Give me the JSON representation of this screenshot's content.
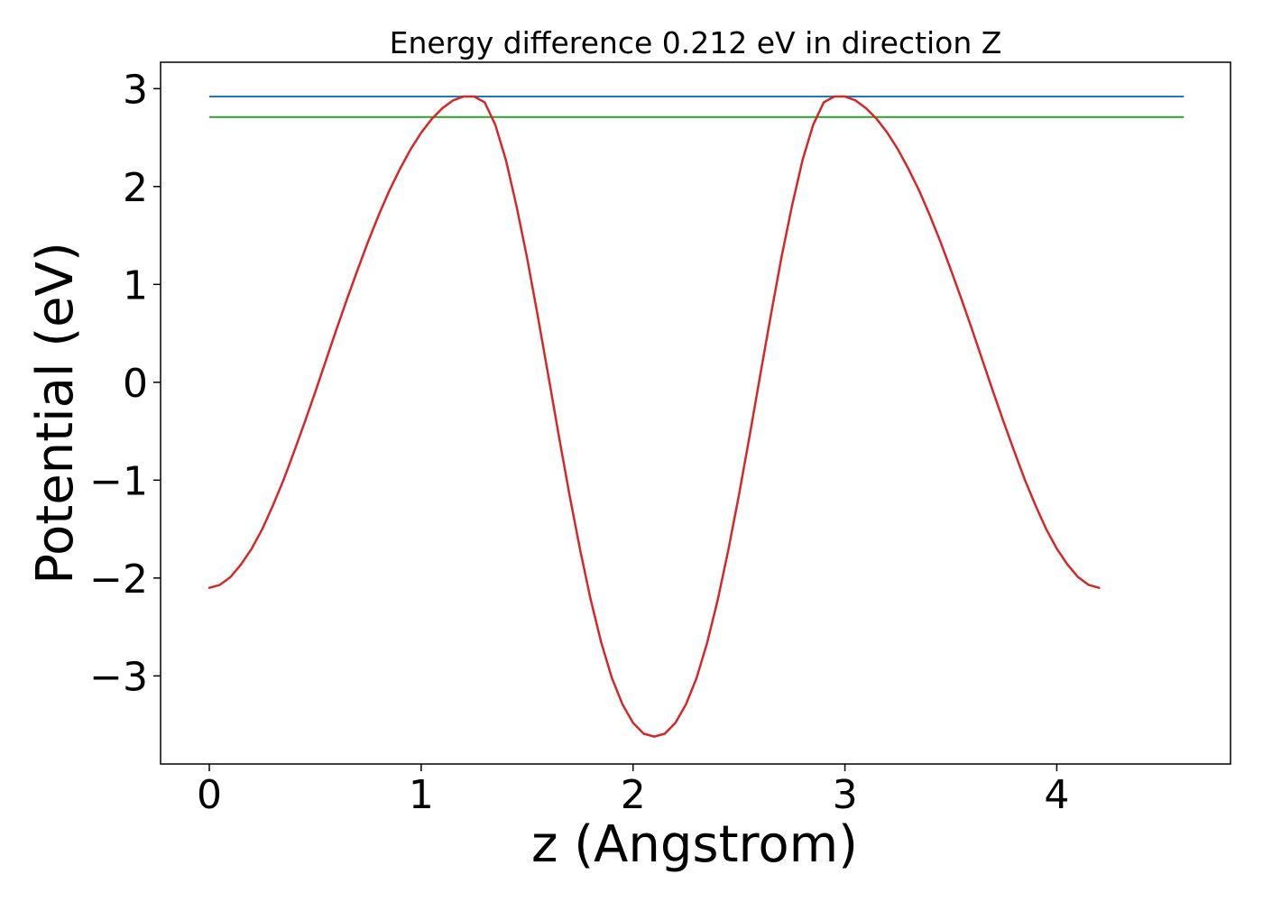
{
  "chart_data": {
    "type": "line",
    "title": "Energy difference 0.212 eV in direction Z",
    "xlabel": "z (Angstrom)",
    "ylabel": "Potential (eV)",
    "xlim": [
      -0.23,
      4.82
    ],
    "ylim": [
      -3.9,
      3.27
    ],
    "xticks": [
      0,
      1,
      2,
      3,
      4
    ],
    "xtick_labels": [
      "0",
      "1",
      "2",
      "3",
      "4"
    ],
    "yticks": [
      -3,
      -2,
      -1,
      0,
      1,
      2,
      3
    ],
    "ytick_labels": [
      "−3",
      "−2",
      "−1",
      "0",
      "1",
      "2",
      "3"
    ],
    "grid": false,
    "legend": "none",
    "series": [
      {
        "color": "#1f77b4",
        "kind": "hline",
        "y": 2.92,
        "x": [
          0,
          4.6
        ]
      },
      {
        "color": "#2ca02c",
        "kind": "hline",
        "y": 2.71,
        "x": [
          0,
          4.6
        ]
      },
      {
        "color": "#d62728",
        "kind": "curve",
        "points": [
          [
            0.0,
            -2.1
          ],
          [
            0.05,
            -2.07
          ],
          [
            0.1,
            -1.99
          ],
          [
            0.15,
            -1.86
          ],
          [
            0.2,
            -1.7
          ],
          [
            0.25,
            -1.5
          ],
          [
            0.3,
            -1.26
          ],
          [
            0.35,
            -1.0
          ],
          [
            0.4,
            -0.71
          ],
          [
            0.45,
            -0.41
          ],
          [
            0.5,
            -0.1
          ],
          [
            0.55,
            0.22
          ],
          [
            0.6,
            0.54
          ],
          [
            0.65,
            0.85
          ],
          [
            0.7,
            1.15
          ],
          [
            0.75,
            1.44
          ],
          [
            0.8,
            1.71
          ],
          [
            0.85,
            1.96
          ],
          [
            0.9,
            2.18
          ],
          [
            0.95,
            2.38
          ],
          [
            1.0,
            2.55
          ],
          [
            1.05,
            2.69
          ],
          [
            1.1,
            2.8
          ],
          [
            1.15,
            2.88
          ],
          [
            1.2,
            2.92
          ],
          [
            1.25,
            2.92
          ],
          [
            1.3,
            2.86
          ],
          [
            1.35,
            2.63
          ],
          [
            1.4,
            2.27
          ],
          [
            1.45,
            1.8
          ],
          [
            1.5,
            1.27
          ],
          [
            1.55,
            0.68
          ],
          [
            1.6,
            0.07
          ],
          [
            1.65,
            -0.55
          ],
          [
            1.7,
            -1.15
          ],
          [
            1.75,
            -1.71
          ],
          [
            1.8,
            -2.22
          ],
          [
            1.85,
            -2.66
          ],
          [
            1.9,
            -3.02
          ],
          [
            1.95,
            -3.29
          ],
          [
            2.0,
            -3.48
          ],
          [
            2.05,
            -3.59
          ],
          [
            2.1,
            -3.62
          ],
          [
            2.15,
            -3.59
          ],
          [
            2.2,
            -3.48
          ],
          [
            2.25,
            -3.29
          ],
          [
            2.3,
            -3.02
          ],
          [
            2.35,
            -2.66
          ],
          [
            2.4,
            -2.22
          ],
          [
            2.45,
            -1.71
          ],
          [
            2.5,
            -1.15
          ],
          [
            2.55,
            -0.55
          ],
          [
            2.6,
            0.07
          ],
          [
            2.65,
            0.68
          ],
          [
            2.7,
            1.27
          ],
          [
            2.75,
            1.8
          ],
          [
            2.8,
            2.27
          ],
          [
            2.85,
            2.63
          ],
          [
            2.9,
            2.86
          ],
          [
            2.95,
            2.92
          ],
          [
            3.0,
            2.92
          ],
          [
            3.05,
            2.88
          ],
          [
            3.1,
            2.8
          ],
          [
            3.15,
            2.69
          ],
          [
            3.2,
            2.55
          ],
          [
            3.25,
            2.38
          ],
          [
            3.3,
            2.18
          ],
          [
            3.35,
            1.96
          ],
          [
            3.4,
            1.71
          ],
          [
            3.45,
            1.44
          ],
          [
            3.5,
            1.15
          ],
          [
            3.55,
            0.85
          ],
          [
            3.6,
            0.54
          ],
          [
            3.65,
            0.22
          ],
          [
            3.7,
            -0.1
          ],
          [
            3.75,
            -0.41
          ],
          [
            3.8,
            -0.71
          ],
          [
            3.85,
            -1.0
          ],
          [
            3.9,
            -1.26
          ],
          [
            3.95,
            -1.5
          ],
          [
            4.0,
            -1.7
          ],
          [
            4.05,
            -1.86
          ],
          [
            4.1,
            -1.99
          ],
          [
            4.15,
            -2.07
          ],
          [
            4.2,
            -2.1
          ]
        ]
      }
    ]
  }
}
